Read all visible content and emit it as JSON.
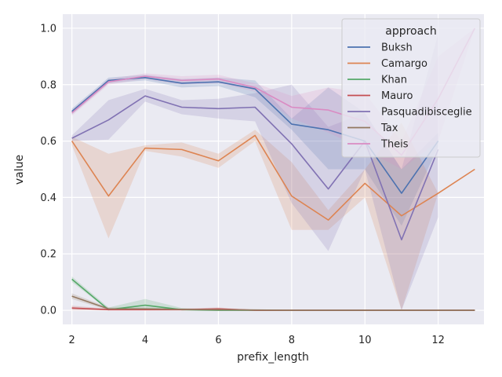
{
  "chart_data": {
    "type": "line",
    "xlabel": "prefix_length",
    "ylabel": "value",
    "xlim": [
      1.75,
      13.25
    ],
    "ylim": [
      -0.05,
      1.05
    ],
    "xticks": [
      2,
      4,
      6,
      8,
      10,
      12
    ],
    "yticks": [
      0.0,
      0.2,
      0.4,
      0.6,
      0.8,
      1.0
    ],
    "xtick_labels": [
      "2",
      "4",
      "6",
      "8",
      "10",
      "12"
    ],
    "ytick_labels": [
      "0.0",
      "0.2",
      "0.4",
      "0.6",
      "0.8",
      "1.0"
    ],
    "grid": true,
    "legend": {
      "title": "approach",
      "placement": "top-right"
    },
    "series": [
      {
        "name": "Buksh",
        "color": "#4c72b0",
        "x": [
          2,
          3,
          4,
          5,
          6,
          7,
          8,
          9,
          10,
          11,
          12
        ],
        "y": [
          0.705,
          0.815,
          0.825,
          0.805,
          0.81,
          0.785,
          0.66,
          0.64,
          0.6,
          0.415,
          0.6
        ],
        "lower": [
          0.695,
          0.805,
          0.815,
          0.79,
          0.795,
          0.755,
          0.64,
          0.5,
          0.5,
          0.3,
          0.58
        ],
        "upper": [
          0.715,
          0.825,
          0.835,
          0.82,
          0.825,
          0.815,
          0.68,
          0.79,
          0.7,
          0.5,
          0.63
        ]
      },
      {
        "name": "Camargo",
        "color": "#dd8452",
        "x": [
          2,
          3,
          4,
          5,
          6,
          7,
          8,
          9,
          10,
          11,
          12,
          13
        ],
        "y": [
          0.6,
          0.405,
          0.575,
          0.57,
          0.53,
          0.62,
          0.405,
          0.32,
          0.45,
          0.335,
          0.415,
          0.5
        ],
        "lower": [
          0.585,
          0.255,
          0.565,
          0.545,
          0.505,
          0.6,
          0.285,
          0.285,
          0.4,
          0.0,
          0.415,
          0.5
        ],
        "upper": [
          0.615,
          0.555,
          0.585,
          0.595,
          0.555,
          0.64,
          0.525,
          0.355,
          0.5,
          0.665,
          0.415,
          0.5
        ]
      },
      {
        "name": "Khan",
        "color": "#55a868",
        "x": [
          2,
          3,
          4,
          5,
          6,
          7,
          8,
          9,
          10,
          11,
          12,
          13
        ],
        "y": [
          0.11,
          0.002,
          0.018,
          0.002,
          0.0,
          0.0,
          0.0,
          0.0,
          0.0,
          0.0,
          0.0,
          0.0
        ],
        "lower": [
          0.1,
          0.0,
          0.002,
          0.0,
          0.0,
          0.0,
          0.0,
          0.0,
          0.0,
          0.0,
          0.0,
          0.0
        ],
        "upper": [
          0.12,
          0.01,
          0.04,
          0.008,
          0.0,
          0.0,
          0.0,
          0.0,
          0.0,
          0.0,
          0.0,
          0.0
        ]
      },
      {
        "name": "Mauro",
        "color": "#c44e52",
        "x": [
          2,
          3,
          4,
          5,
          6,
          7,
          8,
          9,
          10,
          11,
          12,
          13
        ],
        "y": [
          0.008,
          0.002,
          0.002,
          0.002,
          0.005,
          0.0,
          0.0,
          0.0,
          0.0,
          0.0,
          0.0,
          0.0
        ],
        "lower": [
          0.0,
          0.0,
          0.0,
          0.0,
          0.0,
          0.0,
          0.0,
          0.0,
          0.0,
          0.0,
          0.0,
          0.0
        ],
        "upper": [
          0.016,
          0.006,
          0.006,
          0.006,
          0.01,
          0.0,
          0.0,
          0.0,
          0.0,
          0.0,
          0.0,
          0.0
        ]
      },
      {
        "name": "Pasquadibisceglie",
        "color": "#8172b3",
        "x": [
          2,
          3,
          4,
          5,
          6,
          7,
          8,
          9,
          10,
          11,
          12
        ],
        "y": [
          0.61,
          0.675,
          0.76,
          0.72,
          0.715,
          0.72,
          0.59,
          0.43,
          0.6,
          0.25,
          0.57
        ],
        "lower": [
          0.6,
          0.605,
          0.74,
          0.695,
          0.68,
          0.67,
          0.38,
          0.21,
          0.5,
          0.0,
          0.33
        ],
        "upper": [
          0.62,
          0.745,
          0.785,
          0.745,
          0.75,
          0.77,
          0.8,
          0.65,
          0.7,
          0.5,
          0.98
        ]
      },
      {
        "name": "Tax",
        "color": "#937860",
        "x": [
          2,
          3,
          4,
          5,
          6,
          7,
          8,
          9,
          10,
          11,
          12,
          13
        ],
        "y": [
          0.05,
          0.005,
          0.005,
          0.003,
          0.002,
          0.001,
          0.0,
          0.0,
          0.0,
          0.0,
          0.0,
          0.0
        ],
        "lower": [
          0.04,
          0.0,
          0.0,
          0.0,
          0.0,
          0.0,
          0.0,
          0.0,
          0.0,
          0.0,
          0.0,
          0.0
        ],
        "upper": [
          0.06,
          0.01,
          0.01,
          0.006,
          0.004,
          0.002,
          0.0,
          0.0,
          0.0,
          0.0,
          0.0,
          0.0
        ]
      },
      {
        "name": "Theis",
        "color": "#da8bc3",
        "x": [
          2,
          3,
          4,
          5,
          6,
          7,
          8,
          9,
          10,
          11,
          12,
          13
        ],
        "y": [
          0.7,
          0.81,
          0.83,
          0.815,
          0.82,
          0.79,
          0.72,
          0.71,
          0.67,
          0.55,
          0.75,
          1.0
        ],
        "lower": [
          0.69,
          0.8,
          0.82,
          0.8,
          0.805,
          0.775,
          0.68,
          0.63,
          0.57,
          0.5,
          0.6,
          1.0
        ],
        "upper": [
          0.71,
          0.82,
          0.84,
          0.83,
          0.835,
          0.805,
          0.76,
          0.79,
          0.77,
          0.6,
          0.9,
          1.0
        ]
      }
    ]
  }
}
